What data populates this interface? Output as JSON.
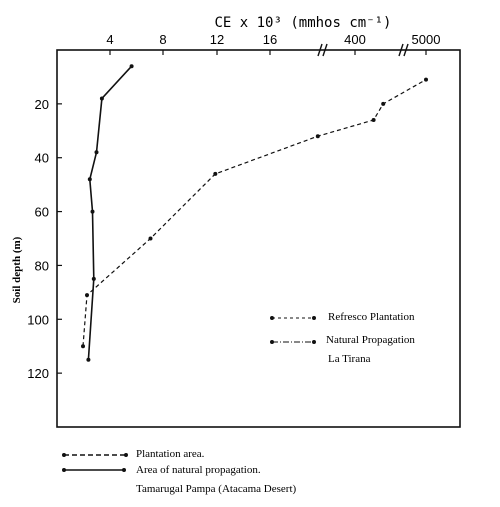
{
  "chart_data": {
    "type": "line",
    "title": "CE x 10³ (mmhos cm⁻¹)",
    "ylabel": "Soil depth (m)",
    "ylim": [
      0,
      140
    ],
    "y_reversed": true,
    "x_axis_position": "top",
    "x_axis_broken": true,
    "x_ticks": [
      "4",
      "8",
      "12",
      "16",
      "400",
      "5000"
    ],
    "y_ticks": [
      "20",
      "40",
      "60",
      "80",
      "100",
      "120"
    ],
    "grid": false,
    "series": [
      {
        "name": "Refresco Plantation",
        "style": "dashed",
        "points": [
          {
            "x": "2",
            "y": 110
          },
          {
            "x": "2.3",
            "y": 91
          },
          {
            "x": "7",
            "y": 70
          },
          {
            "x": "11.8",
            "y": 46
          },
          {
            "x": "~300",
            "y": 32
          },
          {
            "x": "~450",
            "y": 26
          },
          {
            "x": "~700",
            "y": 20
          },
          {
            "x": "~5000",
            "y": 11
          }
        ]
      },
      {
        "name": "Natural Propagation",
        "style": "dash-dot",
        "points": [
          {
            "x": "2.4",
            "y": 115
          },
          {
            "x": "2.8",
            "y": 85
          },
          {
            "x": "2.7",
            "y": 60
          },
          {
            "x": "2.5",
            "y": 48
          },
          {
            "x": "3",
            "y": 38
          },
          {
            "x": "3.4",
            "y": 18
          },
          {
            "x": "5.6",
            "y": 6
          }
        ]
      }
    ],
    "inner_legend": {
      "placement": "center-right",
      "entries": [
        "Refresco Plantation",
        "Natural Propagation"
      ],
      "subtitle": "La Tirana"
    },
    "outer_legend": {
      "placement": "bottom-left",
      "entries": [
        "Plantation area.",
        "Area of natural propagation."
      ],
      "subtitle": "Tamarugal Pampa (Atacama Desert)"
    }
  }
}
